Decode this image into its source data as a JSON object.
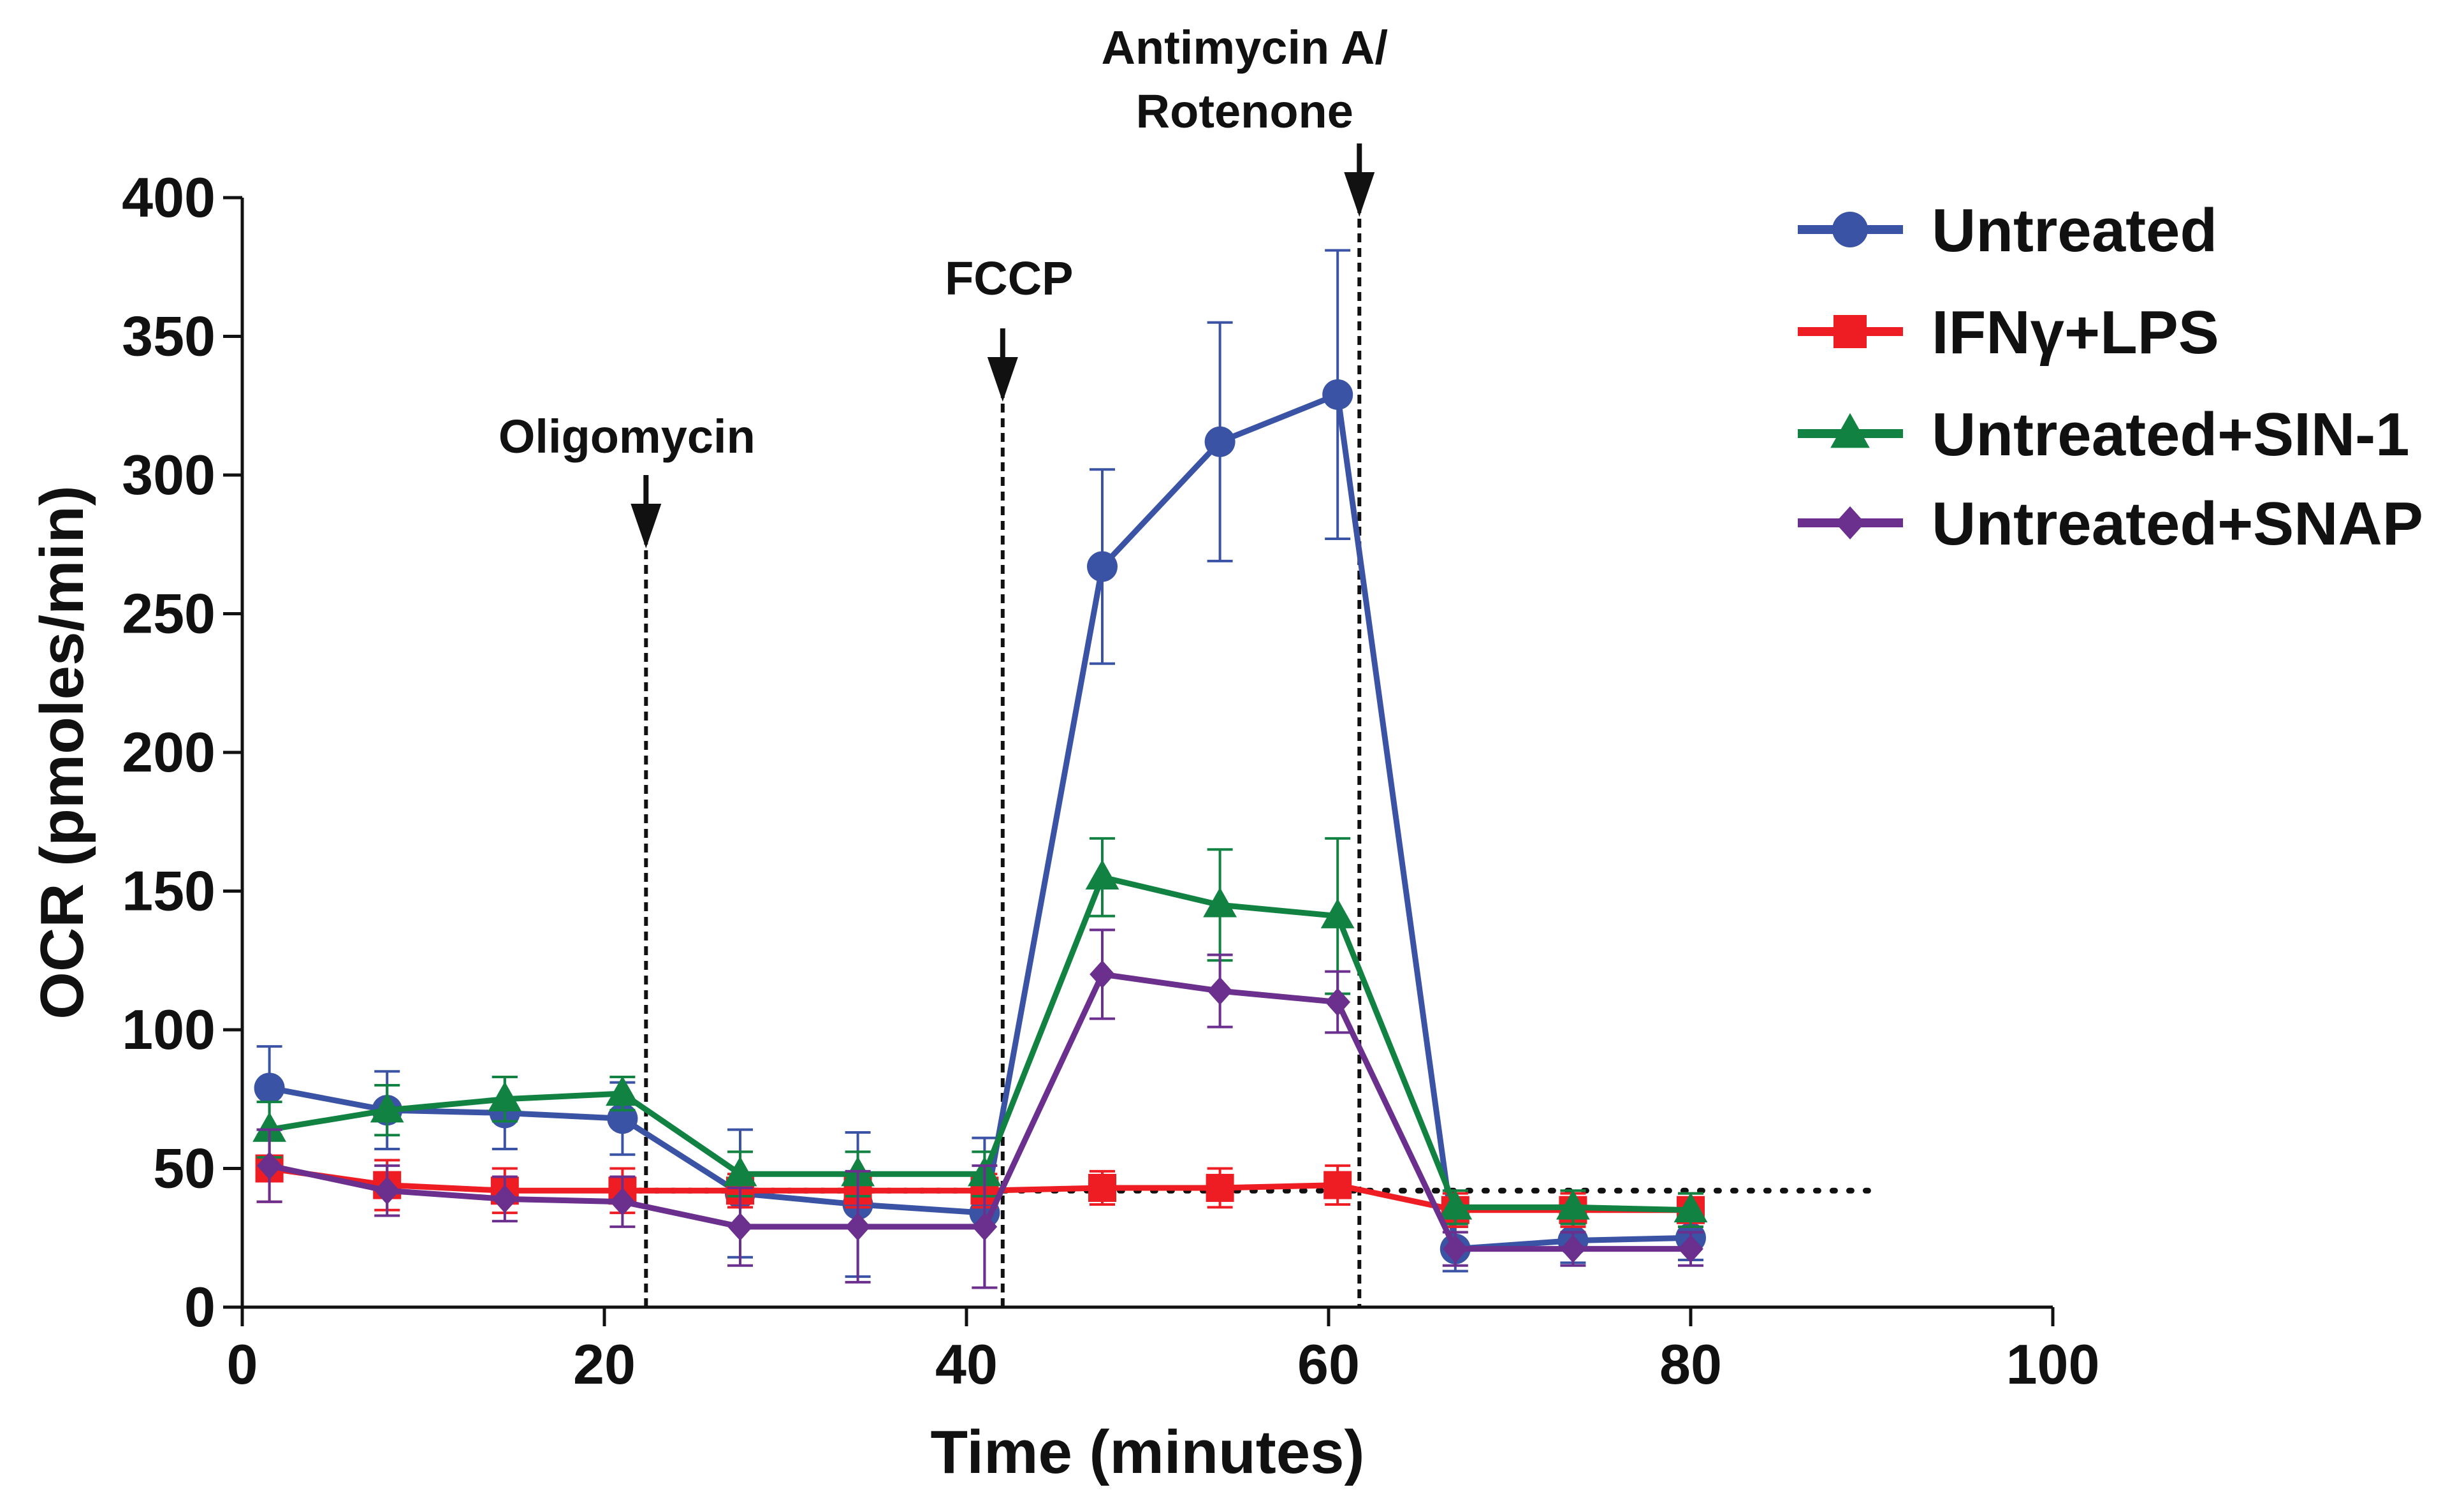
{
  "chart_data": {
    "type": "line",
    "title": "",
    "xlabel": "Time (minutes)",
    "ylabel": "OCR (pmoles/min)",
    "xlim": [
      0,
      100
    ],
    "ylim": [
      0,
      400
    ],
    "xticks": [
      "0",
      "20",
      "40",
      "60",
      "80",
      "100"
    ],
    "yticks": [
      "0",
      "50",
      "100",
      "150",
      "200",
      "250",
      "300",
      "350",
      "400"
    ],
    "x": [
      1.5,
      8,
      14.5,
      21,
      27.5,
      34,
      41,
      47.5,
      54,
      60.5,
      67,
      73.5,
      80
    ],
    "series": [
      {
        "name": "Untreated",
        "color": "#3a53a4",
        "marker": "circle",
        "values": [
          79,
          71,
          70,
          68,
          41,
          37,
          34,
          267,
          312,
          329,
          21,
          24,
          25
        ],
        "errors": [
          15,
          14,
          13,
          13,
          23,
          26,
          27,
          35,
          43,
          52,
          8,
          8,
          8
        ]
      },
      {
        "name": "IFNγ+LPS",
        "color": "#ee1d23",
        "marker": "square",
        "values": [
          50,
          44,
          42,
          42,
          42,
          42,
          42,
          43,
          43,
          44,
          35,
          35,
          35
        ],
        "errors": [
          12,
          9,
          8,
          8,
          6,
          6,
          6,
          6,
          7,
          7,
          6,
          6,
          6
        ]
      },
      {
        "name": "Untreated+SIN-1",
        "color": "#128242",
        "marker": "triangle",
        "values": [
          64,
          71,
          75,
          77,
          48,
          48,
          48,
          155,
          145,
          141,
          36,
          36,
          35
        ],
        "errors": [
          10,
          9,
          8,
          6,
          8,
          8,
          8,
          14,
          20,
          28,
          6,
          6,
          6
        ]
      },
      {
        "name": "Untreated+SNAP",
        "color": "#6b2f8d",
        "marker": "diamond",
        "values": [
          51,
          42,
          39,
          38,
          29,
          29,
          29,
          120,
          114,
          110,
          21,
          21,
          21
        ],
        "errors": [
          13,
          9,
          8,
          9,
          14,
          20,
          22,
          16,
          13,
          11,
          6,
          6,
          6
        ]
      }
    ],
    "baseline": {
      "value": 42,
      "xrange": [
        21,
        90
      ],
      "style": "dotted"
    },
    "annotations": [
      {
        "label": "Oligomycin",
        "x": 22.3
      },
      {
        "label": "FCCP",
        "x": 42
      },
      {
        "label": "Antimycin A/",
        "label2": "Rotenone",
        "x": 61.7
      }
    ],
    "legend_position": "top-right"
  }
}
